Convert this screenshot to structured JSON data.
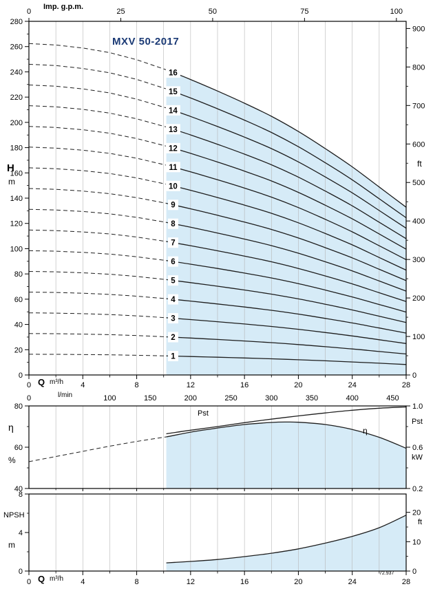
{
  "title": "MXV 50-2017",
  "watermark_code": "72.937",
  "colors": {
    "band_fill": "#d6ebf7",
    "curve": "#1d1d1d",
    "grid": "#b5b5b5",
    "axis": "#000000",
    "title": "#1b3a75"
  },
  "axes_labels": {
    "top": "Imp. g.p.m.",
    "flow_letter": "Q",
    "flow_unit": "m³/h",
    "flow_unit2": "l/min",
    "head_letter": "H",
    "head_unit": "m",
    "head_unit_right": "ft",
    "eff_letter": "η",
    "eff_unit": "%",
    "power_letter": "Pst",
    "power_unit": "kW",
    "npsh_letter": "NPSH",
    "npsh_unit": "m",
    "npsh_unit_right": "ft"
  },
  "chart_data": [
    {
      "id": "head_capacity",
      "type": "line",
      "title": "MXV 50-2017",
      "x": {
        "label": "Q m³/h",
        "min": 0,
        "max": 28,
        "ticks": [
          0,
          4,
          8,
          12,
          16,
          20,
          24,
          28
        ],
        "minor_step": 2
      },
      "x_lmin": {
        "label": "l/min",
        "to_m3h": 0.06,
        "ticks": [
          0,
          100,
          150,
          200,
          250,
          300,
          350,
          400,
          450
        ]
      },
      "x_gpm": {
        "label": "Imp. g.p.m.",
        "to_m3h": 0.27276,
        "ticks": [
          0,
          25,
          50,
          75,
          100
        ]
      },
      "y_left": {
        "label": "H (m)",
        "min": 0,
        "max": 280,
        "ticks": [
          0,
          20,
          40,
          60,
          80,
          100,
          120,
          140,
          160,
          180,
          200,
          220,
          240,
          260,
          280
        ],
        "minor_step": 10
      },
      "y_right": {
        "label": "ft",
        "min": 0,
        "max": 918.6,
        "ticks": [
          0,
          100,
          200,
          300,
          400,
          500,
          600,
          700,
          800,
          900
        ],
        "minor_step": 50
      },
      "solid_from_q": 10.2,
      "stage_label_q": 10.7,
      "q_points": [
        0,
        2,
        4,
        6,
        8,
        10.2,
        12,
        14,
        16,
        18,
        20,
        22,
        24,
        26,
        28
      ],
      "head_per_stage_m": [
        16.4,
        16.33,
        16.18,
        15.95,
        15.6,
        15.1,
        14.62,
        14.05,
        13.45,
        12.8,
        12.05,
        11.2,
        10.3,
        9.3,
        8.3
      ],
      "stages": [
        1,
        2,
        3,
        4,
        5,
        6,
        7,
        8,
        9,
        10,
        11,
        12,
        13,
        14,
        15,
        16
      ]
    },
    {
      "id": "efficiency_power",
      "type": "line",
      "y_left": {
        "label": "η (%)",
        "min": 40,
        "max": 80,
        "ticks": [
          40,
          60,
          80
        ],
        "minor_ticks": [
          50,
          70
        ]
      },
      "y_right": {
        "label": "Pst (kW)",
        "min": 0.2,
        "max": 1.0,
        "ticks": [
          0.2,
          0.6,
          1.0
        ],
        "minor_ticks": [
          0.4,
          0.8
        ]
      },
      "series": [
        {
          "name": "η",
          "axis": "left",
          "dashed_until_q": 10.2,
          "fill_from_q": 10.2,
          "points": [
            [
              0,
              53
            ],
            [
              2,
              55.5
            ],
            [
              4,
              58
            ],
            [
              6,
              60.5
            ],
            [
              8,
              62.8
            ],
            [
              10.2,
              65
            ],
            [
              12,
              67.3
            ],
            [
              14,
              69.3
            ],
            [
              16,
              71
            ],
            [
              18,
              72
            ],
            [
              19,
              72.2
            ],
            [
              20,
              72.1
            ],
            [
              22,
              71
            ],
            [
              24,
              68.6
            ],
            [
              26,
              64.8
            ],
            [
              28,
              59.5
            ]
          ]
        },
        {
          "name": "Pst",
          "axis": "right",
          "points": [
            [
              10.2,
              0.73
            ],
            [
              12,
              0.765
            ],
            [
              14,
              0.8
            ],
            [
              16,
              0.838
            ],
            [
              18,
              0.872
            ],
            [
              20,
              0.903
            ],
            [
              22,
              0.932
            ],
            [
              24,
              0.958
            ],
            [
              26,
              0.978
            ],
            [
              28,
              0.99
            ]
          ]
        }
      ]
    },
    {
      "id": "npsh",
      "type": "line",
      "x": {
        "label": "Q m³/h",
        "min": 0,
        "max": 28,
        "ticks": [
          0,
          4,
          8,
          12,
          16,
          20,
          24,
          28
        ],
        "minor_step": 2
      },
      "y_left": {
        "label": "NPSH (m)",
        "min": 0,
        "max": 8,
        "ticks": [
          0,
          4,
          8
        ],
        "minor_ticks": [
          2,
          6
        ]
      },
      "y_right": {
        "label": "ft",
        "min": 0,
        "max": 26.25,
        "ticks": [
          0,
          10,
          20
        ],
        "minor_ticks": [
          5,
          15
        ]
      },
      "series": [
        {
          "name": "NPSH",
          "axis": "left",
          "fill_from_q": 10.2,
          "points": [
            [
              10.2,
              0.85
            ],
            [
              12,
              1.0
            ],
            [
              14,
              1.2
            ],
            [
              16,
              1.5
            ],
            [
              18,
              1.85
            ],
            [
              20,
              2.3
            ],
            [
              22,
              2.9
            ],
            [
              24,
              3.6
            ],
            [
              26,
              4.5
            ],
            [
              28,
              5.8
            ]
          ]
        }
      ]
    }
  ]
}
